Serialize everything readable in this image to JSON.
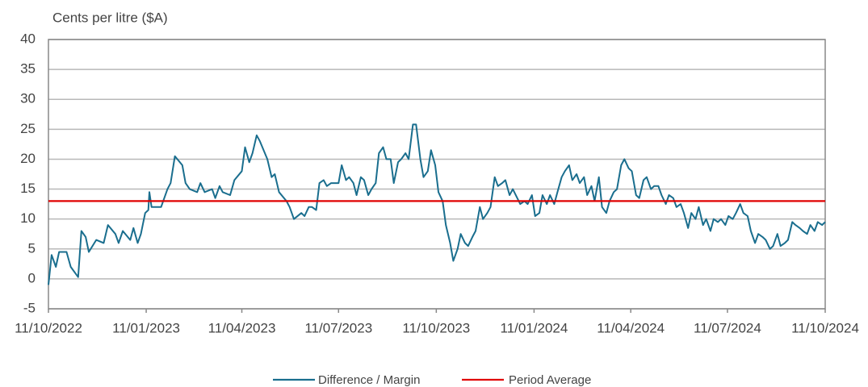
{
  "chart_data": {
    "type": "line",
    "y_label": "Cents per litre ($A)",
    "x": [
      "11/10/2022",
      "14/10/2022",
      "18/10/2022",
      "21/10/2022",
      "28/10/2022",
      "01/11/2022",
      "08/11/2022",
      "11/11/2022",
      "15/11/2022",
      "18/11/2022",
      "25/11/2022",
      "02/12/2022",
      "06/12/2022",
      "13/12/2022",
      "16/12/2022",
      "20/12/2022",
      "27/12/2022",
      "30/12/2022",
      "03/01/2023",
      "06/01/2023",
      "10/01/2023",
      "13/01/2023",
      "14/01/2023",
      "16/01/2023",
      "20/01/2023",
      "25/01/2023",
      "31/01/2023",
      "03/02/2023",
      "07/02/2023",
      "14/02/2023",
      "17/02/2023",
      "21/02/2023",
      "28/02/2023",
      "03/03/2023",
      "07/03/2023",
      "14/03/2023",
      "17/03/2023",
      "21/03/2023",
      "24/03/2023",
      "31/03/2023",
      "04/04/2023",
      "11/04/2023",
      "14/04/2023",
      "18/04/2023",
      "21/04/2023",
      "25/04/2023",
      "28/04/2023",
      "05/05/2023",
      "09/05/2023",
      "12/05/2023",
      "16/05/2023",
      "23/05/2023",
      "26/05/2023",
      "30/05/2023",
      "06/06/2023",
      "09/06/2023",
      "13/06/2023",
      "16/06/2023",
      "20/06/2023",
      "23/06/2023",
      "27/06/2023",
      "30/06/2023",
      "04/07/2023",
      "11/07/2023",
      "14/07/2023",
      "18/07/2023",
      "21/07/2023",
      "25/07/2023",
      "28/07/2023",
      "01/08/2023",
      "04/08/2023",
      "08/08/2023",
      "11/08/2023",
      "15/08/2023",
      "18/08/2023",
      "22/08/2023",
      "25/08/2023",
      "29/08/2023",
      "01/09/2023",
      "05/09/2023",
      "08/09/2023",
      "12/09/2023",
      "15/09/2023",
      "19/09/2023",
      "22/09/2023",
      "26/09/2023",
      "29/09/2023",
      "03/10/2023",
      "06/10/2023",
      "10/10/2023",
      "13/10/2023",
      "17/10/2023",
      "20/10/2023",
      "24/10/2023",
      "27/10/2023",
      "31/10/2023",
      "03/11/2023",
      "07/11/2023",
      "10/11/2023",
      "14/11/2023",
      "17/11/2023",
      "21/11/2023",
      "24/11/2023",
      "28/11/2023",
      "01/12/2023",
      "05/12/2023",
      "08/12/2023",
      "12/12/2023",
      "15/12/2023",
      "19/12/2023",
      "22/12/2023",
      "29/12/2023",
      "02/01/2024",
      "05/01/2024",
      "09/01/2024",
      "12/01/2024",
      "16/01/2024",
      "19/01/2024",
      "23/01/2024",
      "26/01/2024",
      "30/01/2024",
      "02/02/2024",
      "06/02/2024",
      "09/02/2024",
      "13/02/2024",
      "16/02/2024",
      "20/02/2024",
      "23/02/2024",
      "27/02/2024",
      "01/03/2024",
      "05/03/2024",
      "08/03/2024",
      "12/03/2024",
      "15/03/2024",
      "19/03/2024",
      "22/03/2024",
      "26/03/2024",
      "29/03/2024",
      "02/04/2024",
      "05/04/2024",
      "09/04/2024",
      "12/04/2024",
      "16/04/2024",
      "19/04/2024",
      "23/04/2024",
      "26/04/2024",
      "30/04/2024",
      "03/05/2024",
      "07/05/2024",
      "10/05/2024",
      "14/05/2024",
      "17/05/2024",
      "21/05/2024",
      "24/05/2024",
      "28/05/2024",
      "31/05/2024",
      "04/06/2024",
      "07/06/2024",
      "11/06/2024",
      "14/06/2024",
      "18/06/2024",
      "21/06/2024",
      "25/06/2024",
      "28/06/2024",
      "02/07/2024",
      "05/07/2024",
      "09/07/2024",
      "12/07/2024",
      "16/07/2024",
      "19/07/2024",
      "23/07/2024",
      "26/07/2024",
      "30/07/2024",
      "02/08/2024",
      "06/08/2024",
      "09/08/2024",
      "13/08/2024",
      "16/08/2024",
      "20/08/2024",
      "23/08/2024",
      "27/08/2024",
      "30/08/2024",
      "03/09/2024",
      "06/09/2024",
      "10/09/2024",
      "13/09/2024",
      "17/09/2024",
      "20/09/2024",
      "24/09/2024",
      "27/09/2024",
      "01/10/2024",
      "04/10/2024",
      "08/10/2024",
      "11/10/2024"
    ],
    "series": [
      {
        "name": "Difference / Margin",
        "color": "#1a6e8e",
        "values": [
          -1,
          4,
          2,
          4.5,
          4.5,
          2,
          0.3,
          8,
          7,
          4.5,
          6.5,
          6,
          9,
          7.5,
          6,
          8,
          6.5,
          8.5,
          6,
          7.5,
          11,
          11.5,
          14.5,
          12,
          12,
          12,
          15,
          16,
          20.5,
          19,
          16,
          15,
          14.5,
          16,
          14.5,
          15,
          13.5,
          15.5,
          14.5,
          14,
          16.5,
          18,
          22,
          19.5,
          21,
          24,
          23,
          20,
          17,
          17.5,
          14.5,
          13,
          12,
          10,
          11,
          10.5,
          12,
          12,
          11.5,
          16,
          16.5,
          15.5,
          16,
          16,
          19,
          16.5,
          17,
          16,
          14,
          17,
          16.5,
          14,
          15,
          16,
          21,
          22,
          20,
          20,
          16,
          19.5,
          20,
          21,
          20,
          25.8,
          25.8,
          20,
          17,
          18,
          21.5,
          19,
          14.5,
          13,
          9,
          6,
          3,
          5,
          7.5,
          6,
          5.5,
          7,
          8,
          12,
          10,
          11,
          12,
          17,
          15.5,
          16,
          16.5,
          14,
          15,
          12.5,
          13,
          12.5,
          14,
          10.5,
          11,
          14,
          12.5,
          14,
          12.5,
          14.5,
          17,
          18,
          19,
          16.5,
          17.5,
          16,
          17,
          14,
          15.5,
          13,
          17,
          12,
          11,
          13,
          14.5,
          15,
          19,
          20,
          18.5,
          18,
          14,
          13.5,
          16.5,
          17,
          15,
          15.5,
          15.5,
          14,
          12.5,
          14,
          13.5,
          12,
          12.5,
          11,
          8.5,
          11,
          10,
          12,
          9,
          10,
          8,
          10,
          9.5,
          10,
          9,
          10.5,
          10,
          11,
          12.5,
          11,
          10.5,
          8,
          6,
          7.5,
          7,
          6.5,
          5,
          5.5,
          7.5,
          5.5,
          6,
          6.5,
          9.5,
          9,
          8.5,
          8,
          7.5,
          9,
          8,
          9.5,
          9,
          9.5
        ]
      }
    ],
    "average": {
      "name": "Period Average",
      "color": "#e00000",
      "value": 13
    },
    "xlim": [
      "11/10/2022",
      "11/10/2024"
    ],
    "xticks": [
      "11/10/2022",
      "11/01/2023",
      "11/04/2023",
      "11/07/2023",
      "11/10/2023",
      "11/01/2024",
      "11/04/2024",
      "11/07/2024",
      "11/10/2024"
    ],
    "ylim": [
      -5,
      40
    ],
    "yticks": [
      -5,
      0,
      5,
      10,
      15,
      20,
      25,
      30,
      35,
      40
    ],
    "grid": true
  }
}
